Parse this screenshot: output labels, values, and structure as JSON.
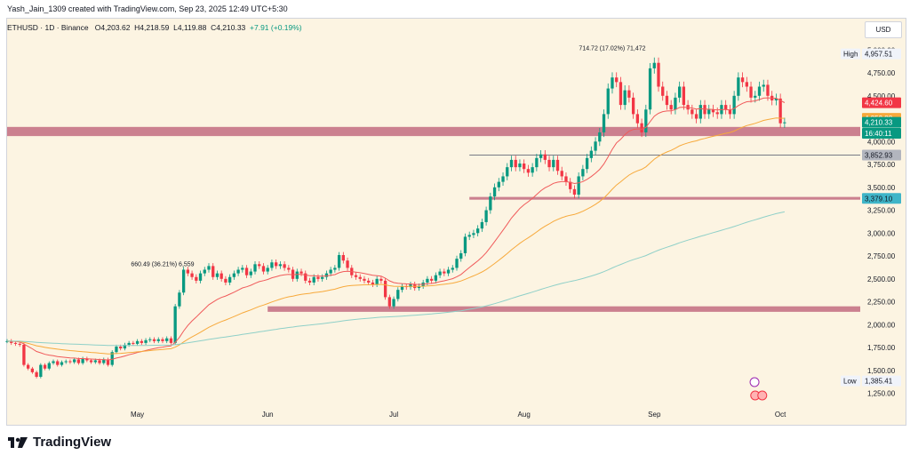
{
  "header": {
    "created_line": "Yash_Jain_1309 created with TradingView.com, Sep 23, 2025 12:49 UTC+5:30"
  },
  "symbol_bar": {
    "symbol": "ETHUSD · 1D · Binance",
    "open": "O4,203.62",
    "high": "H4,218.59",
    "low": "L4,119.88",
    "close": "C4,210.33",
    "change": "+7.91 (+0.19%)"
  },
  "currency_button": "USD",
  "brand": {
    "name": "TradingView"
  },
  "colors": {
    "background": "#fcf4e2",
    "up": "#089981",
    "down": "#f23645",
    "zone": "#c26b80",
    "ema_short": "#f05a5a",
    "ema_mid": "#f7a93b",
    "ema_long": "#8fd0c8",
    "axis_text": "#131722"
  },
  "chart_data": {
    "type": "candlestick",
    "x_range": [
      "2025-03-31",
      "2025-10-20"
    ],
    "ylim": [
      1100,
      5100
    ],
    "y_ticks": [
      "1,250.00",
      "1,500.00",
      "1,750.00",
      "2,000.00",
      "2,250.00",
      "2,500.00",
      "2,750.00",
      "3,000.00",
      "3,250.00",
      "3,500.00",
      "3,750.00",
      "4,000.00",
      "4,250.00",
      "4,500.00",
      "4,750.00",
      "5,000.00"
    ],
    "x_ticks": [
      {
        "date": "2025-05-01",
        "label": "May"
      },
      {
        "date": "2025-06-01",
        "label": "Jun"
      },
      {
        "date": "2025-07-01",
        "label": "Jul"
      },
      {
        "date": "2025-08-01",
        "label": "Aug"
      },
      {
        "date": "2025-09-01",
        "label": "Sep"
      },
      {
        "date": "2025-10-01",
        "label": "Oct"
      }
    ],
    "closes_start_date": "2025-03-31",
    "closes": [
      1820,
      1800,
      1790,
      1780,
      1560,
      1520,
      1480,
      1430,
      1560,
      1520,
      1580,
      1600,
      1560,
      1590,
      1600,
      1590,
      1620,
      1580,
      1630,
      1610,
      1590,
      1610,
      1580,
      1620,
      1560,
      1700,
      1760,
      1740,
      1780,
      1800,
      1790,
      1820,
      1800,
      1830,
      1840,
      1820,
      1840,
      1820,
      1850,
      1800,
      2200,
      2350,
      2600,
      2560,
      2520,
      2480,
      2560,
      2600,
      2640,
      2520,
      2560,
      2500,
      2460,
      2520,
      2560,
      2600,
      2620,
      2540,
      2580,
      2660,
      2640,
      2580,
      2620,
      2680,
      2640,
      2660,
      2620,
      2600,
      2500,
      2580,
      2560,
      2480,
      2460,
      2520,
      2500,
      2520,
      2560,
      2600,
      2620,
      2760,
      2700,
      2620,
      2540,
      2520,
      2500,
      2480,
      2460,
      2440,
      2500,
      2480,
      2300,
      2200,
      2280,
      2380,
      2420,
      2410,
      2440,
      2400,
      2420,
      2460,
      2500,
      2480,
      2540,
      2580,
      2560,
      2600,
      2620,
      2720,
      2780,
      2960,
      2980,
      3000,
      3050,
      3120,
      3250,
      3400,
      3500,
      3560,
      3620,
      3720,
      3800,
      3720,
      3760,
      3700,
      3660,
      3720,
      3820,
      3860,
      3800,
      3720,
      3800,
      3680,
      3620,
      3560,
      3480,
      3420,
      3620,
      3700,
      3820,
      3900,
      4000,
      4100,
      4300,
      4580,
      4700,
      4650,
      4400,
      4560,
      4480,
      4300,
      4200,
      4100,
      4350,
      4800,
      4860,
      4600,
      4500,
      4400,
      4350,
      4480,
      4600,
      4400,
      4350,
      4300,
      4250,
      4400,
      4300,
      4350,
      4320,
      4300,
      4400,
      4350,
      4300,
      4500,
      4700,
      4650,
      4600,
      4480,
      4500,
      4600,
      4620,
      4500,
      4450,
      4470,
      4200,
      4210
    ],
    "moving_averages": [
      {
        "kind": "short",
        "color": "#f05a5a"
      },
      {
        "kind": "mid",
        "color": "#f7a93b"
      },
      {
        "kind": "long",
        "color": "#8fd0c8"
      }
    ],
    "zones": [
      {
        "from_date": "2025-03-31",
        "to_date": "2025-10-20",
        "y_low": 4060,
        "y_high": 4160
      },
      {
        "from_date": "2025-07-19",
        "to_date": "2025-10-20",
        "y_low": 3365,
        "y_high": 3395
      },
      {
        "from_date": "2025-06-01",
        "to_date": "2025-10-20",
        "y_low": 2140,
        "y_high": 2200
      }
    ],
    "horizontal_lines": [
      {
        "from_date": "2025-07-19",
        "to_date": "2025-10-20",
        "y": 3852.93
      }
    ],
    "annotations": [
      {
        "text": "660.49 (36.21%) 6,559",
        "date": "2025-05-07",
        "y": 2640
      },
      {
        "text": "714.72 (17.02%) 71,472",
        "date": "2025-08-22",
        "y": 5000
      }
    ],
    "price_labels": [
      {
        "text": "High",
        "kind": "plain",
        "y": 4957.51
      },
      {
        "text": "4,957.51",
        "kind": "plain",
        "y": 4957.51
      },
      {
        "text": "4,424.60",
        "kind": "red",
        "y": 4424.6
      },
      {
        "text": "4,253.88",
        "kind": "orange",
        "y": 4253.88
      },
      {
        "text": "4,210.33",
        "kind": "green",
        "y": 4210.33
      },
      {
        "text": "16:40:11",
        "kind": "green",
        "y": 4090
      },
      {
        "text": "3,852.93",
        "kind": "grey",
        "y": 3852.93
      },
      {
        "text": "3,379.10",
        "kind": "teal",
        "y": 3379.1
      },
      {
        "text": "Low",
        "kind": "plain",
        "y": 1385.41
      },
      {
        "text": "1,385.41",
        "kind": "plain",
        "y": 1385.41
      }
    ]
  }
}
